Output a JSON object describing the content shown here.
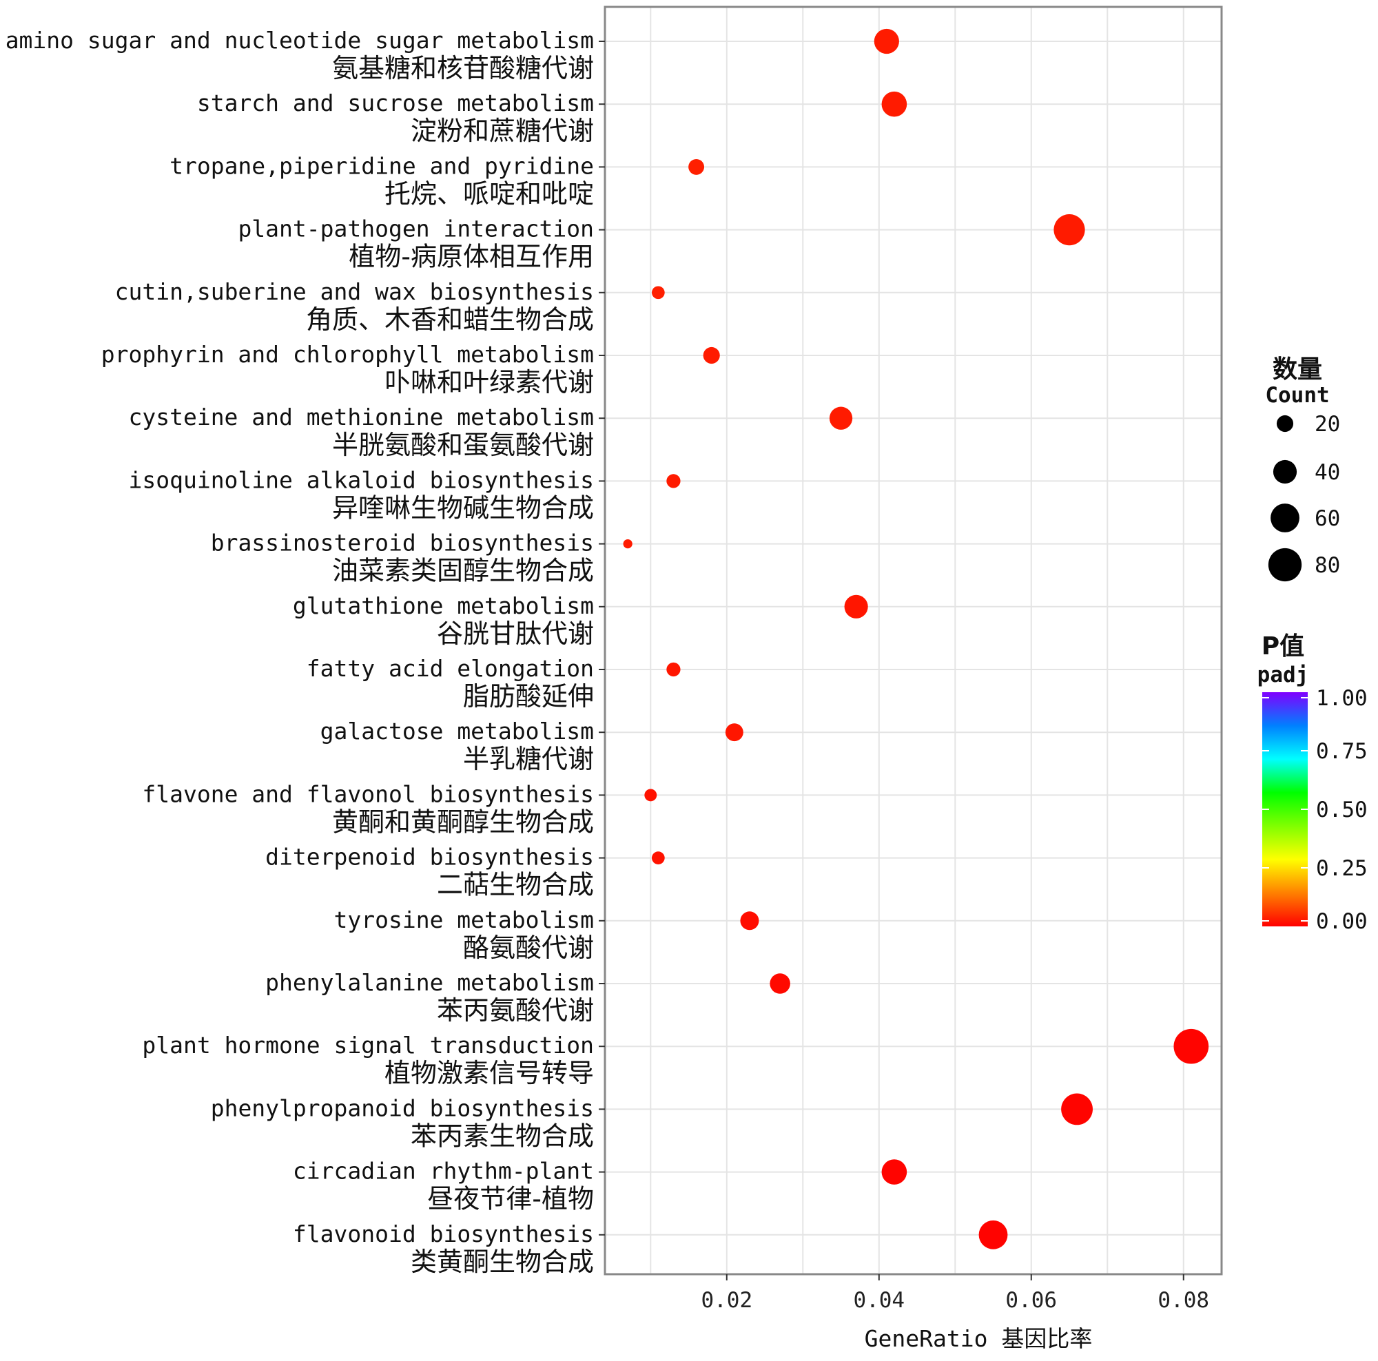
{
  "chart_data": {
    "type": "scatter",
    "subtype": "bubble",
    "categories": [
      {
        "en": "amino sugar and nucleotide sugar metabolism",
        "zh": "氨基糖和核苷酸糖代谢",
        "gene_ratio": 0.041,
        "count": 45,
        "padj": 0.03
      },
      {
        "en": "starch and sucrose metabolism",
        "zh": "淀粉和蔗糖代谢",
        "gene_ratio": 0.042,
        "count": 46,
        "padj": 0.03
      },
      {
        "en": "tropane,piperidine and pyridine",
        "zh": "托烷、哌啶和吡啶",
        "gene_ratio": 0.016,
        "count": 18,
        "padj": 0.035
      },
      {
        "en": "plant-pathogen interaction",
        "zh": "植物-病原体相互作用",
        "gene_ratio": 0.065,
        "count": 70,
        "padj": 0.03
      },
      {
        "en": "cutin,suberine and wax biosynthesis",
        "zh": "角质、木香和蜡生物合成",
        "gene_ratio": 0.011,
        "count": 12,
        "padj": 0.035
      },
      {
        "en": "prophyrin and chlorophyll metabolism",
        "zh": "卟啉和叶绿素代谢",
        "gene_ratio": 0.018,
        "count": 20,
        "padj": 0.03
      },
      {
        "en": "cysteine and methionine metabolism",
        "zh": "半胱氨酸和蛋氨酸代谢",
        "gene_ratio": 0.035,
        "count": 38,
        "padj": 0.03
      },
      {
        "en": "isoquinoline alkaloid biosynthesis",
        "zh": "异喹啉生物碱生物合成",
        "gene_ratio": 0.013,
        "count": 14,
        "padj": 0.03
      },
      {
        "en": "brassinosteroid biosynthesis",
        "zh": "油菜素类固醇生物合成",
        "gene_ratio": 0.007,
        "count": 6,
        "padj": 0.03
      },
      {
        "en": "glutathione metabolism",
        "zh": "谷胱甘肽代谢",
        "gene_ratio": 0.037,
        "count": 40,
        "padj": 0.025
      },
      {
        "en": "fatty acid elongation",
        "zh": "脂肪酸延伸",
        "gene_ratio": 0.013,
        "count": 14,
        "padj": 0.025
      },
      {
        "en": "galactose metabolism",
        "zh": "半乳糖代谢",
        "gene_ratio": 0.021,
        "count": 23,
        "padj": 0.025
      },
      {
        "en": "flavone and flavonol biosynthesis",
        "zh": "黄酮和黄酮醇生物合成",
        "gene_ratio": 0.01,
        "count": 11,
        "padj": 0.02
      },
      {
        "en": "diterpenoid biosynthesis",
        "zh": "二萜生物合成",
        "gene_ratio": 0.011,
        "count": 12,
        "padj": 0.02
      },
      {
        "en": "tyrosine metabolism",
        "zh": "酪氨酸代谢",
        "gene_ratio": 0.023,
        "count": 25,
        "padj": 0.015
      },
      {
        "en": "phenylalanine metabolism",
        "zh": "苯丙氨酸代谢",
        "gene_ratio": 0.027,
        "count": 30,
        "padj": 0.01
      },
      {
        "en": "plant hormone signal transduction",
        "zh": "植物激素信号转导",
        "gene_ratio": 0.081,
        "count": 88,
        "padj": 0.005
      },
      {
        "en": "phenylpropanoid biosynthesis",
        "zh": "苯丙素生物合成",
        "gene_ratio": 0.066,
        "count": 72,
        "padj": 0.005
      },
      {
        "en": "circadian rhythm-plant",
        "zh": "昼夜节律-植物",
        "gene_ratio": 0.042,
        "count": 46,
        "padj": 0.005
      },
      {
        "en": "flavonoid biosynthesis",
        "zh": "类黄酮生物合成",
        "gene_ratio": 0.055,
        "count": 60,
        "padj": 0.003
      }
    ],
    "xlabel": "GeneRatio 基因比率",
    "ylabel": "",
    "xlim": [
      0.004,
      0.085
    ],
    "xticks": [
      0.02,
      0.04,
      0.06,
      0.08
    ],
    "xtick_labels": [
      "0.02",
      "0.04",
      "0.06",
      "0.08"
    ],
    "grid": true,
    "legend_size": {
      "title_zh": "数量",
      "title_en": "Count",
      "values": [
        20,
        40,
        60,
        80
      ],
      "labels": [
        "20",
        "40",
        "60",
        "80"
      ],
      "color": "#000000"
    },
    "legend_color": {
      "title_zh": "P值",
      "title_en": "padj",
      "range": [
        0,
        1
      ],
      "ticks": [
        1.0,
        0.75,
        0.5,
        0.25,
        0.0
      ],
      "labels": [
        "1.00",
        "0.75",
        "0.50",
        "0.25",
        "0.00"
      ],
      "stops": [
        "#ff0000",
        "#ff8000",
        "#ffff00",
        "#80ff00",
        "#00ff00",
        "#00ffff",
        "#0080ff",
        "#8000ff"
      ]
    },
    "legend_position": "right"
  }
}
